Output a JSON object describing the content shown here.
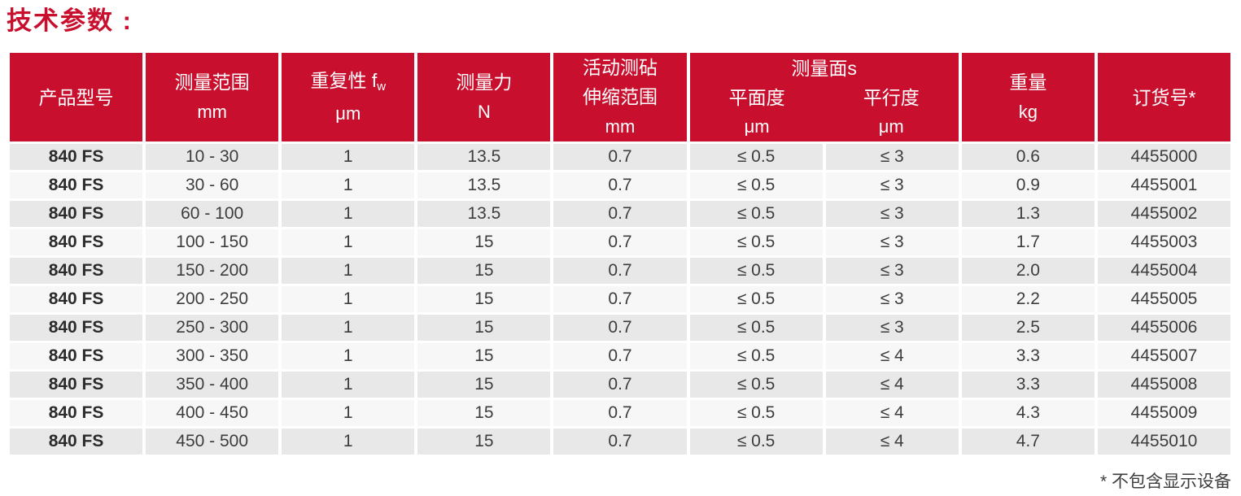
{
  "title": "技术参数 :",
  "footnote": "* 不包含显示设备",
  "colors": {
    "brand_red": "#c8102e",
    "header_text": "#ffffff",
    "row_odd_bg": "#e8e8e8",
    "row_even_bg": "#f7f7f7",
    "body_text": "#3d3d3d"
  },
  "table": {
    "headers": {
      "model": {
        "label": "产品型号"
      },
      "range": {
        "label": "测量范围",
        "unit": "mm"
      },
      "repeatability": {
        "label": "重复性 f",
        "sub": "w",
        "unit": "μm"
      },
      "force": {
        "label": "测量力",
        "unit": "N"
      },
      "anvil": {
        "line1": "活动测砧",
        "line2": "伸缩范围",
        "unit": "mm"
      },
      "faces": {
        "group_label": "测量面s",
        "flatness": "平面度",
        "parallelism": "平行度",
        "flatness_unit": "μm",
        "parallelism_unit": "μm"
      },
      "weight": {
        "label": "重量",
        "unit": "kg"
      },
      "order": {
        "label": "订货号*"
      }
    },
    "rows": [
      [
        "840 FS",
        "10 - 30",
        "1",
        "13.5",
        "0.7",
        "≤ 0.5",
        "≤ 3",
        "0.6",
        "4455000"
      ],
      [
        "840 FS",
        "30 - 60",
        "1",
        "13.5",
        "0.7",
        "≤ 0.5",
        "≤ 3",
        "0.9",
        "4455001"
      ],
      [
        "840 FS",
        "60 - 100",
        "1",
        "13.5",
        "0.7",
        "≤ 0.5",
        "≤ 3",
        "1.3",
        "4455002"
      ],
      [
        "840 FS",
        "100 - 150",
        "1",
        "15",
        "0.7",
        "≤ 0.5",
        "≤ 3",
        "1.7",
        "4455003"
      ],
      [
        "840 FS",
        "150 - 200",
        "1",
        "15",
        "0.7",
        "≤ 0.5",
        "≤ 3",
        "2.0",
        "4455004"
      ],
      [
        "840 FS",
        "200 - 250",
        "1",
        "15",
        "0.7",
        "≤ 0.5",
        "≤ 3",
        "2.2",
        "4455005"
      ],
      [
        "840 FS",
        "250 - 300",
        "1",
        "15",
        "0.7",
        "≤ 0.5",
        "≤ 3",
        "2.5",
        "4455006"
      ],
      [
        "840 FS",
        "300 - 350",
        "1",
        "15",
        "0.7",
        "≤ 0.5",
        "≤ 4",
        "3.3",
        "4455007"
      ],
      [
        "840 FS",
        "350 - 400",
        "1",
        "15",
        "0.7",
        "≤ 0.5",
        "≤ 4",
        "3.3",
        "4455008"
      ],
      [
        "840 FS",
        "400 - 450",
        "1",
        "15",
        "0.7",
        "≤ 0.5",
        "≤ 4",
        "4.3",
        "4455009"
      ],
      [
        "840 FS",
        "450 - 500",
        "1",
        "15",
        "0.7",
        "≤ 0.5",
        "≤ 4",
        "4.7",
        "4455010"
      ]
    ]
  }
}
